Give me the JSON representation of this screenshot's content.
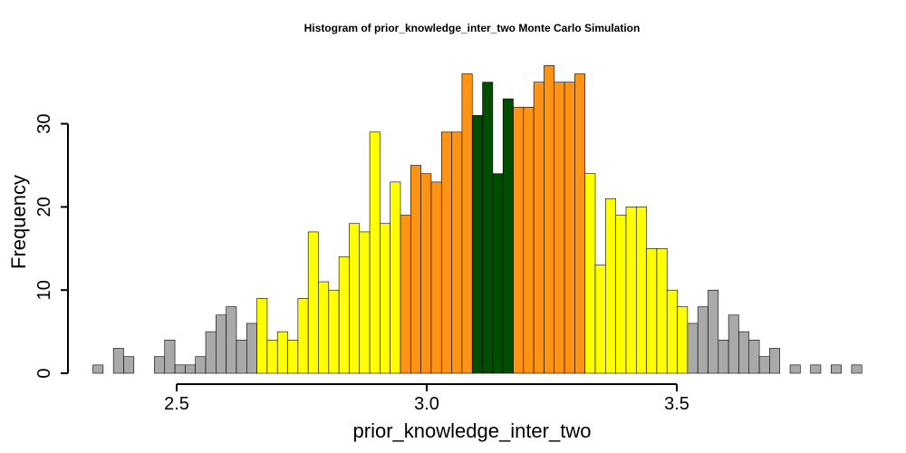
{
  "chart_data": {
    "type": "bar",
    "subtype": "histogram",
    "title": "Histogram of  prior_knowledge_inter_two  Monte Carlo Simulation",
    "xlabel": "prior_knowledge_inter_two",
    "ylabel": "Frequency",
    "xlim": [
      2.33,
      3.85
    ],
    "ylim": [
      0,
      38
    ],
    "x_ticks": [
      {
        "value": 2.5,
        "label": "2.5"
      },
      {
        "value": 3.0,
        "label": "3.0"
      },
      {
        "value": 3.5,
        "label": "3.5"
      }
    ],
    "y_ticks": [
      {
        "value": 0,
        "label": "0"
      },
      {
        "value": 10,
        "label": "10"
      },
      {
        "value": 20,
        "label": "20"
      },
      {
        "value": 30,
        "label": "30"
      }
    ],
    "bin_start": 2.3325,
    "bin_width": 0.0205,
    "counts": [
      1,
      0,
      3,
      2,
      0,
      0,
      2,
      4,
      1,
      1,
      2,
      5,
      7,
      8,
      4,
      6,
      9,
      4,
      5,
      4,
      9,
      17,
      11,
      10,
      14,
      18,
      17,
      29,
      18,
      23,
      19,
      25,
      24,
      23,
      29,
      29,
      36,
      31,
      35,
      24,
      33,
      32,
      32,
      35,
      37,
      35,
      35,
      36,
      24,
      13,
      21,
      19,
      20,
      20,
      15,
      15,
      10,
      8,
      6,
      8,
      10,
      4,
      7,
      5,
      4,
      2,
      3,
      0,
      1,
      0,
      1,
      0,
      1,
      0,
      1
    ],
    "band_colors": {
      "tail": "#a9a9a9",
      "outer": "#ffff00",
      "inner": "#ff9313",
      "center": "#004d00"
    },
    "bands": [
      {
        "band": "tail",
        "from_bin": 0,
        "to_bin": 15
      },
      {
        "band": "outer",
        "from_bin": 16,
        "to_bin": 29
      },
      {
        "band": "inner",
        "from_bin": 30,
        "to_bin": 36
      },
      {
        "band": "center",
        "from_bin": 37,
        "to_bin": 40
      },
      {
        "band": "inner",
        "from_bin": 41,
        "to_bin": 47
      },
      {
        "band": "outer",
        "from_bin": 48,
        "to_bin": 57
      },
      {
        "band": "tail",
        "from_bin": 58,
        "to_bin": 74
      }
    ]
  }
}
